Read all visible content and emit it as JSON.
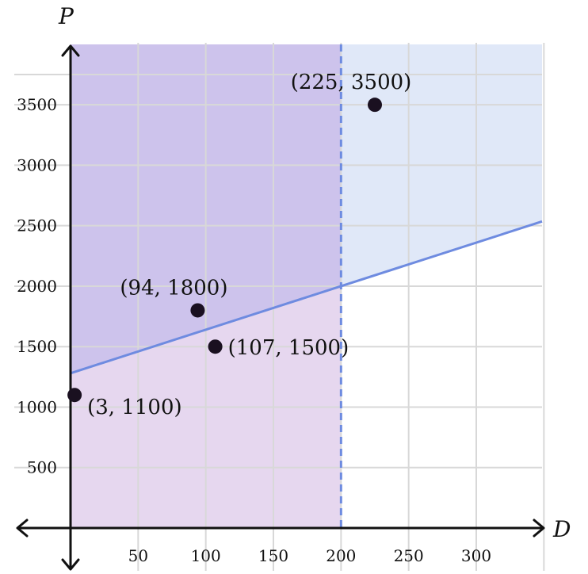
{
  "chart_data": {
    "type": "scatter",
    "xlabel": "D",
    "ylabel": "P",
    "xlim": [
      -20,
      350
    ],
    "ylim": [
      -350,
      3900
    ],
    "grid": true,
    "x_ticks": [
      {
        "value": 50,
        "label": "50"
      },
      {
        "value": 100,
        "label": "100"
      },
      {
        "value": 150,
        "label": "150"
      },
      {
        "value": 200,
        "label": "200"
      },
      {
        "value": 250,
        "label": "250"
      },
      {
        "value": 300,
        "label": "300"
      }
    ],
    "y_ticks": [
      {
        "value": 500,
        "label": "500"
      },
      {
        "value": 1000,
        "label": "1000"
      },
      {
        "value": 1500,
        "label": "1500"
      },
      {
        "value": 2000,
        "label": "2000"
      },
      {
        "value": 2500,
        "label": "2500"
      },
      {
        "value": 3000,
        "label": "3000"
      },
      {
        "value": 3500,
        "label": "3500"
      }
    ],
    "points": [
      {
        "x": 3,
        "y": 1100,
        "label": "(3, 1100)"
      },
      {
        "x": 94,
        "y": 1800,
        "label": "(94, 1800)"
      },
      {
        "x": 107,
        "y": 1500,
        "label": "(107, 1500)"
      },
      {
        "x": 225,
        "y": 3500,
        "label": "(225, 3500)"
      }
    ],
    "boundary_line": {
      "equation": "P = 3.6D + 1280",
      "slope": 3.6,
      "intercept": 1280,
      "style": "solid"
    },
    "vertical_line": {
      "x": 200,
      "style": "dashed"
    },
    "regions": [
      {
        "description": "P > 3.6D + 1280",
        "shading": "light blue"
      },
      {
        "description": "0 <= D < 200",
        "shading": "light purple"
      }
    ],
    "colors": {
      "line": "#6e8be0",
      "region_above": "#e0e8f8",
      "region_strip": "#e6d7ef",
      "overlap": "#cdc3ec",
      "grid": "#d8d8d8",
      "axis": "#111111",
      "point": "#1a1020"
    }
  }
}
